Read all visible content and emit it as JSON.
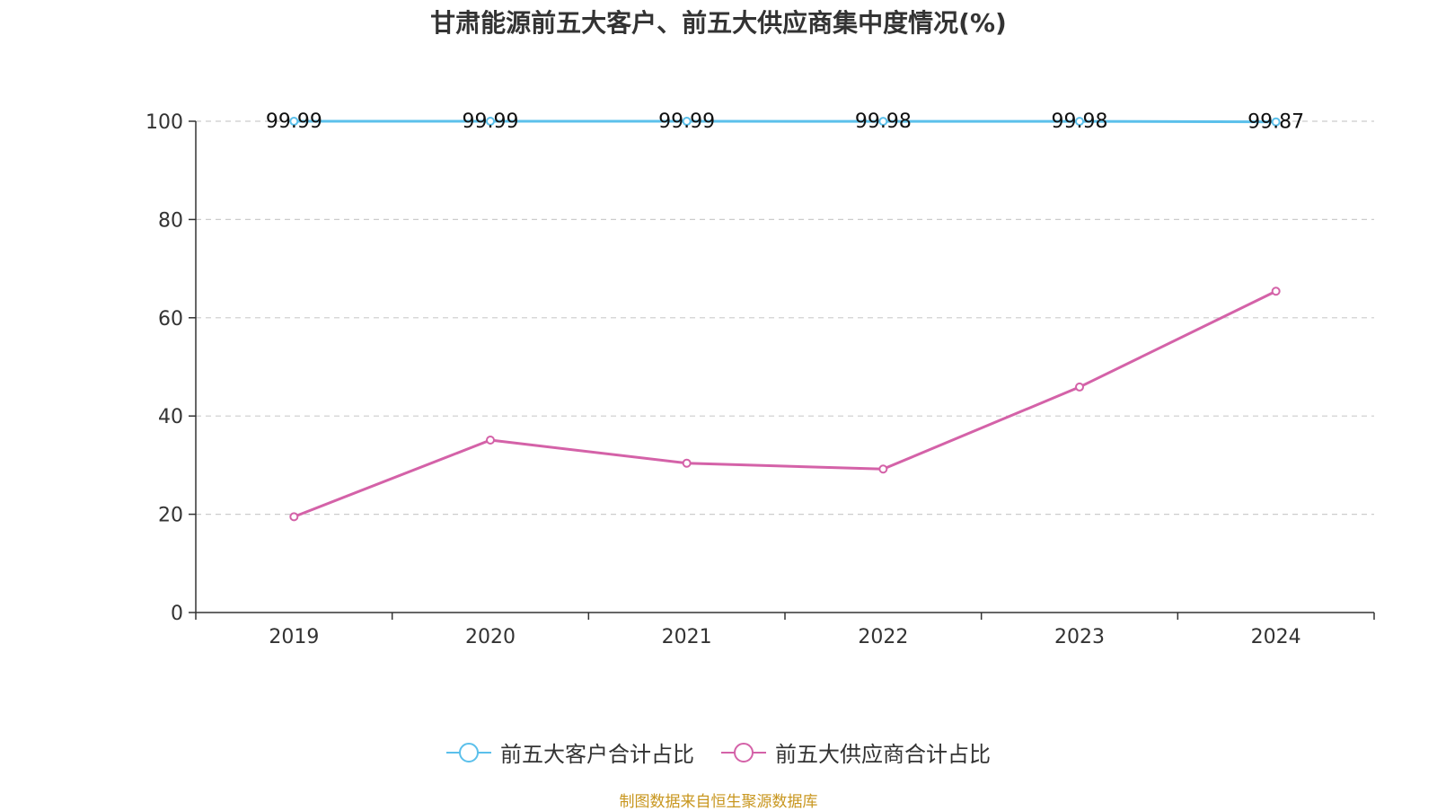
{
  "title": "甘肃能源前五大客户、前五大供应商集中度情况(%)",
  "source": "制图数据来自恒生聚源数据库",
  "colors": {
    "customers": "#5bc0eb",
    "suppliers": "#d462a8"
  },
  "chart_data": {
    "type": "line",
    "categories": [
      "2019",
      "2020",
      "2021",
      "2022",
      "2023",
      "2024"
    ],
    "series": [
      {
        "name": "前五大客户合计占比",
        "values": [
          99.99,
          99.99,
          99.99,
          99.98,
          99.98,
          99.87
        ],
        "labels": [
          "99.99",
          "99.99",
          "99.99",
          "99.98",
          "99.98",
          "99.87"
        ]
      },
      {
        "name": "前五大供应商合计占比",
        "values": [
          19.5,
          35.1,
          30.4,
          29.2,
          45.9,
          65.4
        ]
      }
    ],
    "ylim": [
      0,
      100
    ],
    "yticks": [
      0,
      20,
      40,
      60,
      80,
      100
    ],
    "ytick_labels": [
      "0",
      "20",
      "40",
      "60",
      "80",
      "100"
    ],
    "grid": true,
    "legend": "bottom-center"
  }
}
